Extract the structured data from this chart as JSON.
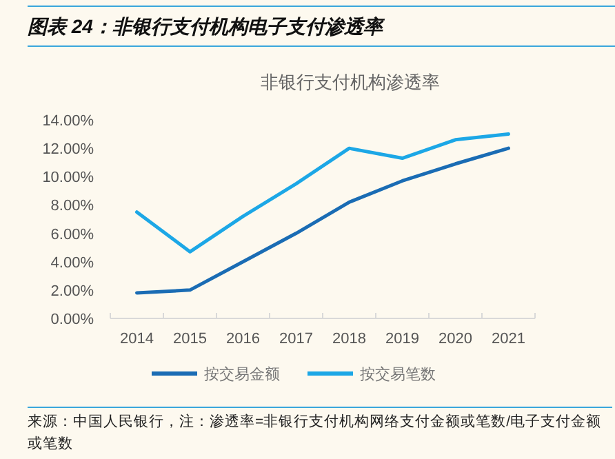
{
  "chart_data": {
    "type": "line",
    "title": "图表 24：非银行支付机构电子支付渗透率",
    "subtitle": "非银行支付机构渗透率",
    "categories": [
      "2014",
      "2015",
      "2016",
      "2017",
      "2018",
      "2019",
      "2020",
      "2021"
    ],
    "series": [
      {
        "name": "按交易金额",
        "color": "#1a6cb4",
        "values": [
          1.8,
          2.0,
          4.0,
          6.0,
          8.2,
          9.7,
          10.9,
          12.0
        ]
      },
      {
        "name": "按交易笔数",
        "color": "#1ca7e6",
        "values": [
          7.5,
          4.7,
          7.2,
          9.5,
          12.0,
          11.3,
          12.6,
          13.0
        ]
      }
    ],
    "ylim": [
      0,
      14
    ],
    "yticks": [
      {
        "value": 0,
        "label": "0.00%"
      },
      {
        "value": 2,
        "label": "2.00%"
      },
      {
        "value": 4,
        "label": "4.00%"
      },
      {
        "value": 6,
        "label": "6.00%"
      },
      {
        "value": 8,
        "label": "8.00%"
      },
      {
        "value": 10,
        "label": "10.00%"
      },
      {
        "value": 12,
        "label": "12.00%"
      },
      {
        "value": 14,
        "label": "14.00%"
      }
    ],
    "legend": "bottom",
    "annotations": [
      "来源：中国人民银行，注：渗透率=非银行支付机构网络支付金额或笔数/电子支付金额或笔数"
    ]
  }
}
